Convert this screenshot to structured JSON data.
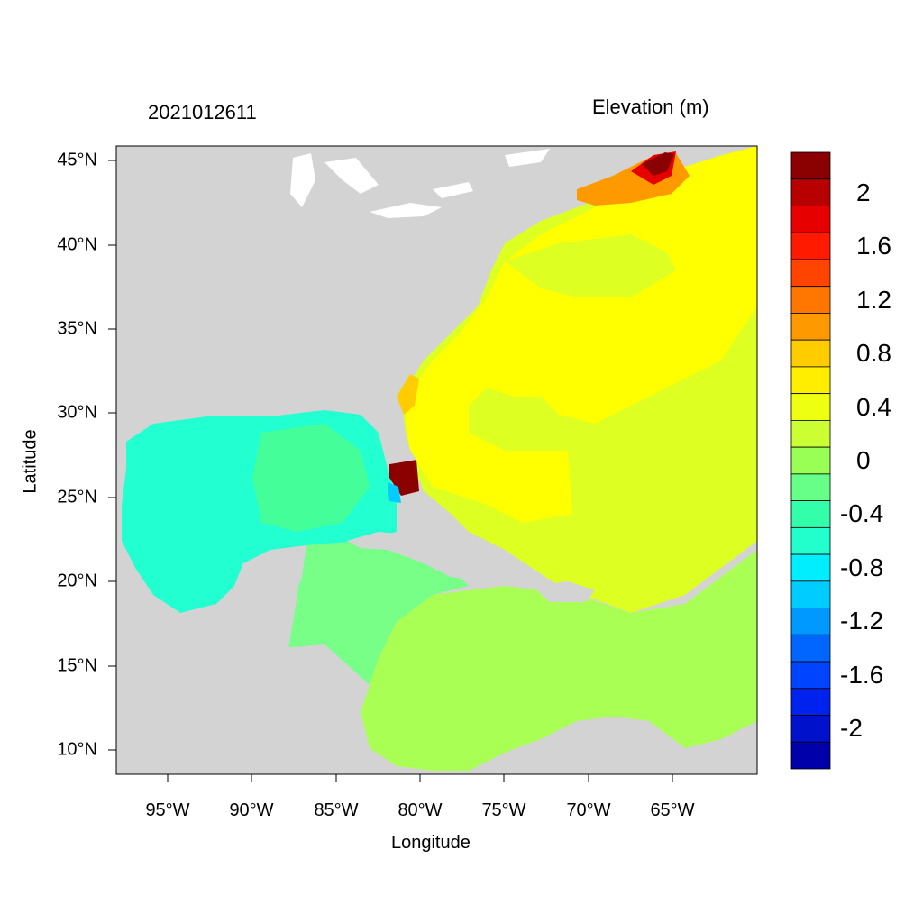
{
  "title_left": "2021012611",
  "title_right": "Elevation (m)",
  "xlabel": "Longitude",
  "ylabel": "Latitude",
  "y_ticks": [
    "45°N",
    "40°N",
    "35°N",
    "30°N",
    "25°N",
    "20°N",
    "15°N",
    "10°N"
  ],
  "x_ticks": [
    "95°W",
    "90°W",
    "85°W",
    "80°W",
    "75°W",
    "70°W",
    "65°W"
  ],
  "colorbar": {
    "labels": [
      "2",
      "1.6",
      "1.2",
      "0.8",
      "0.4",
      "0",
      "-0.4",
      "-0.8",
      "-1.2",
      "-1.6",
      "-2"
    ],
    "colors_top_to_bottom": [
      "#8b0000",
      "#b80000",
      "#e60000",
      "#ff1a00",
      "#ff4400",
      "#ff7700",
      "#ff9900",
      "#ffcc00",
      "#ffee00",
      "#eeff11",
      "#ccff33",
      "#99ff55",
      "#66ff88",
      "#33ffaa",
      "#22ffcc",
      "#00eeff",
      "#00ccff",
      "#0099ff",
      "#0066ff",
      "#0044ff",
      "#0022ee",
      "#0011cc",
      "#0000aa"
    ]
  },
  "colors": {
    "land": "#d3d3d3",
    "gulf": "#22ffd0",
    "caribbean_west": "#77ff88",
    "caribbean_east": "#aaff55",
    "atlantic": "#ddff22",
    "atlantic_core": "#ffff00"
  }
}
